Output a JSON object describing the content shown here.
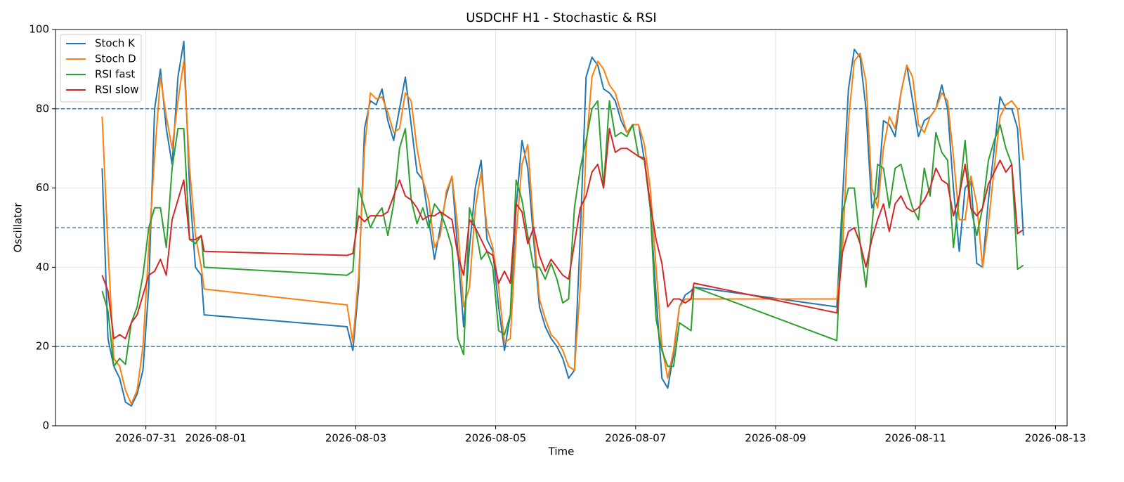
{
  "chart_data": {
    "type": "line",
    "title": "USDCHF H1 - Stochastic & RSI",
    "xlabel": "Time",
    "ylabel": "Oscillator",
    "x": [
      -15,
      -13,
      -11,
      -9,
      -7,
      -5,
      -3,
      -1,
      1,
      3,
      5,
      7,
      9,
      11,
      13,
      15,
      17,
      19,
      20,
      69,
      71,
      73,
      75,
      77,
      79,
      81,
      83,
      85,
      87,
      89,
      91,
      93,
      95,
      97,
      99,
      101,
      103,
      105,
      107,
      109,
      111,
      113,
      115,
      117,
      119,
      121,
      123,
      125,
      127,
      129,
      131,
      133,
      135,
      137,
      139,
      141,
      143,
      145,
      147,
      149,
      151,
      153,
      155,
      157,
      159,
      161,
      163,
      165,
      167,
      169,
      171,
      173,
      175,
      177,
      179,
      181,
      183,
      185,
      187,
      188,
      237,
      239,
      241,
      243,
      245,
      247,
      249,
      251,
      253,
      255,
      257,
      259,
      261,
      263,
      265,
      267,
      269,
      271,
      273,
      275,
      277,
      279,
      281,
      283,
      285,
      287,
      289,
      291,
      293,
      295,
      297,
      299,
      301
    ],
    "series": [
      {
        "name": "Stoch K",
        "color": "#1f77b4",
        "values": [
          65,
          22,
          15,
          12,
          6,
          5,
          8,
          14,
          35,
          80,
          90,
          75,
          66,
          88,
          97,
          60,
          40,
          38,
          28,
          25,
          19,
          35,
          75,
          82,
          81,
          85,
          77,
          72,
          80,
          88,
          76,
          64,
          62,
          52,
          42,
          50,
          58,
          63,
          44,
          25,
          45,
          60,
          67,
          47,
          44,
          30,
          19,
          28,
          55,
          72,
          65,
          47,
          30,
          25,
          22,
          20,
          17,
          12,
          14,
          48,
          88,
          93,
          91,
          85,
          84,
          82,
          77,
          74,
          76,
          76,
          67,
          55,
          33,
          12,
          9.5,
          18,
          30,
          33,
          34,
          35,
          30,
          58,
          85,
          95,
          93,
          80,
          55,
          58,
          77,
          76,
          73,
          84,
          91,
          82,
          73,
          77,
          78,
          80,
          86,
          80,
          60,
          44,
          60,
          62,
          41,
          40,
          57,
          70,
          83,
          80,
          80,
          75,
          48
        ]
      },
      {
        "name": "Stoch D",
        "color": "#ff7f0e",
        "values": [
          78,
          45,
          17,
          15,
          9,
          5.5,
          9,
          20,
          45,
          68,
          88,
          78,
          70,
          82,
          92,
          65,
          48,
          40,
          34.5,
          30.5,
          21,
          38,
          70,
          84,
          82.5,
          83,
          79,
          74,
          75,
          84,
          82,
          70,
          62,
          57,
          45,
          48,
          59,
          63,
          50,
          30,
          35,
          55,
          64,
          50,
          45,
          35,
          21,
          22,
          48,
          66,
          71,
          50,
          32,
          27,
          23,
          21.5,
          19,
          15,
          14,
          35,
          70,
          88,
          92,
          90,
          86,
          84,
          79,
          74,
          76,
          76,
          71,
          60,
          40,
          20,
          12,
          19,
          30,
          32,
          32,
          32,
          32,
          45,
          77,
          92,
          94,
          87,
          60,
          55,
          70,
          78,
          75,
          84,
          91,
          88,
          76,
          74,
          78,
          80,
          84,
          82,
          68,
          52,
          52,
          63,
          56,
          40,
          51,
          65,
          78,
          81,
          82,
          80,
          67
        ]
      },
      {
        "name": "RSI fast",
        "color": "#2ca02c",
        "values": [
          34,
          29,
          15,
          17,
          15.5,
          26,
          30,
          38,
          50,
          55,
          55,
          45,
          65,
          75,
          75,
          47,
          46,
          48,
          40,
          38,
          39,
          60,
          55,
          50,
          53,
          55,
          48,
          56,
          70,
          75,
          57,
          51,
          55,
          50,
          56,
          54,
          50,
          45,
          22,
          18,
          55,
          50,
          42,
          44,
          40,
          24,
          23,
          28,
          62,
          57,
          48,
          40,
          40,
          37,
          41,
          37,
          31,
          32,
          55,
          65,
          72,
          80,
          82,
          60,
          82,
          73,
          74,
          73,
          76,
          68,
          67,
          55,
          27,
          19,
          15,
          15,
          26,
          25,
          24,
          35,
          21.5,
          54,
          60,
          60,
          46,
          35,
          50,
          66,
          65,
          55,
          65,
          66,
          60,
          55,
          52,
          65,
          58,
          74,
          69,
          67,
          45,
          58,
          72,
          55,
          48,
          55,
          67,
          72,
          76,
          70,
          66,
          39.5,
          40.5
        ]
      },
      {
        "name": "RSI slow",
        "color": "#d62728",
        "values": [
          38,
          34,
          22,
          23,
          22,
          26,
          28,
          33,
          38,
          39,
          42,
          38,
          52,
          57,
          62,
          47,
          47,
          48,
          44,
          43,
          43.5,
          53,
          51.5,
          53,
          53,
          53,
          54,
          58,
          62,
          58,
          57,
          55,
          52,
          53,
          53,
          54,
          53,
          52,
          43,
          38,
          52,
          50,
          47,
          44,
          43,
          36,
          39,
          36,
          56,
          54,
          46,
          50,
          43,
          39,
          42,
          40,
          38,
          37,
          46,
          55,
          58,
          64,
          66,
          60,
          75,
          69,
          70,
          70,
          69,
          68,
          67.5,
          56,
          47,
          41,
          30,
          32,
          32,
          31,
          32,
          36,
          28.5,
          44,
          49,
          50,
          46,
          40,
          47,
          52,
          56,
          49,
          56,
          58,
          55,
          54,
          55,
          57,
          60,
          65,
          62,
          61,
          53,
          58,
          66,
          55,
          53,
          55,
          61,
          64,
          67,
          64,
          66,
          48.5,
          49.5
        ]
      }
    ],
    "xlim": [
      -31,
      316
    ],
    "xticks": [
      {
        "value": 0,
        "label": "2026-07-31"
      },
      {
        "value": 24,
        "label": "2026-08-01"
      },
      {
        "value": 72,
        "label": "2026-08-03"
      },
      {
        "value": 120,
        "label": "2026-08-05"
      },
      {
        "value": 168,
        "label": "2026-08-07"
      },
      {
        "value": 216,
        "label": "2026-08-09"
      },
      {
        "value": 264,
        "label": "2026-08-11"
      },
      {
        "value": 312,
        "label": "2026-08-13"
      }
    ],
    "ylim": [
      0,
      100
    ],
    "yticks": [
      0,
      20,
      40,
      60,
      80,
      100
    ],
    "hlines": [
      20,
      50,
      80
    ],
    "hline_color": "#1f77b4",
    "grid": true,
    "legend": "upper left"
  }
}
